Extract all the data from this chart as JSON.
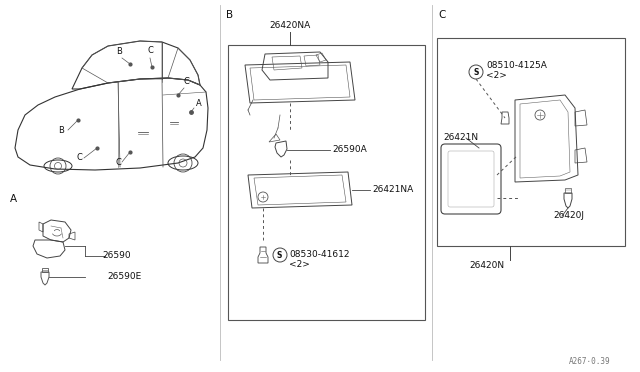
{
  "background_color": "#ffffff",
  "text_color": "#111111",
  "line_color": "#444444",
  "part_numbers": {
    "26590": "26590",
    "26590E": "26590E",
    "26420NA": "26420NA",
    "26590A": "26590A",
    "26421NA": "26421NA",
    "08530_41612": "08530-41612",
    "08530_41612_qty": "<2>",
    "08510_4125A": "08510-4125A",
    "08510_4125A_qty": "<2>",
    "26421N": "26421N",
    "26420J": "26420J",
    "26420N": "26420N"
  },
  "footer": "A267⋅0.39",
  "section_B_label": "B",
  "section_C_label": "C",
  "section_A_label": "A"
}
